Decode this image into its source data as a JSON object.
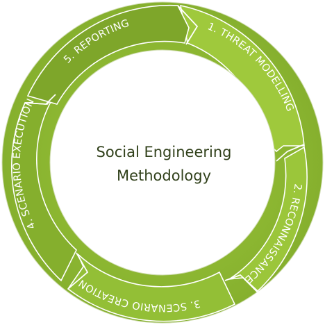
{
  "diagram": {
    "center": {
      "line1": "Social Engineering",
      "line2": "Methodology"
    },
    "steps": [
      {
        "label": "1. THREAT MODELLING"
      },
      {
        "label": "2. RECONNAISSANCE"
      },
      {
        "label": "3. SCENARIO CREATION"
      },
      {
        "label": "4. SCENARIO EXECUTION"
      },
      {
        "label": "5. REPORTING"
      }
    ]
  },
  "colors": {
    "ring_light": "#9cc63a",
    "ring_dark": "#7ea62a",
    "ring_mid": "#8fba33",
    "outline": "#ffffff",
    "center_text": "#30401a"
  }
}
